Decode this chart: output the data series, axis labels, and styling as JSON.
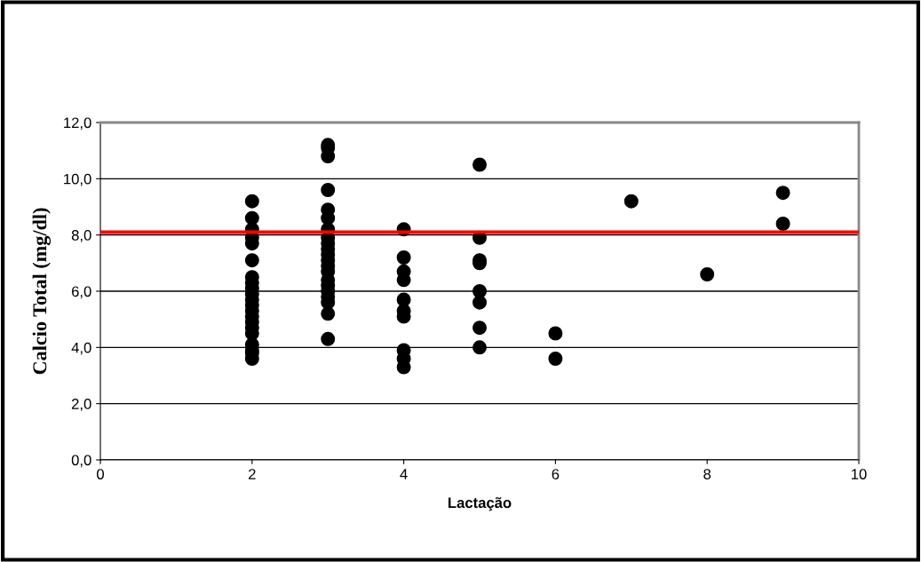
{
  "chart_data": {
    "type": "scatter",
    "xlabel": "Lactação",
    "ylabel": "Calcio Total (mg/dl)",
    "series": [
      {
        "color": "#000000",
        "x": [
          2,
          2,
          2,
          2,
          2,
          2,
          2,
          2,
          2,
          2,
          2,
          2,
          2,
          2,
          2,
          2,
          2,
          2,
          2,
          2,
          2,
          3,
          3,
          3,
          3,
          3,
          3,
          3,
          3,
          3,
          3,
          3,
          3,
          3,
          3,
          3,
          3,
          3,
          3,
          3,
          3,
          3,
          4,
          4,
          4,
          4,
          4,
          4,
          4,
          4,
          4,
          4,
          5,
          5,
          5,
          5,
          5,
          5,
          5,
          5,
          6,
          6,
          7,
          8,
          9,
          9
        ],
        "values": [
          9.2,
          8.6,
          8.2,
          7.9,
          7.7,
          7.1,
          6.5,
          6.3,
          6.1,
          5.9,
          5.7,
          5.5,
          5.3,
          5.1,
          4.9,
          4.7,
          4.5,
          4.1,
          3.9,
          3.8,
          3.6,
          11.2,
          11.1,
          10.8,
          9.6,
          8.9,
          8.6,
          8.2,
          7.9,
          7.7,
          7.5,
          7.3,
          7.1,
          6.9,
          6.7,
          6.4,
          6.2,
          6.0,
          5.8,
          5.6,
          5.2,
          4.3,
          8.2,
          7.2,
          6.7,
          6.4,
          5.7,
          5.3,
          5.1,
          3.9,
          3.6,
          3.3,
          10.5,
          7.9,
          7.1,
          7.0,
          6.0,
          5.6,
          4.7,
          4.0,
          4.5,
          3.6,
          9.2,
          6.6,
          9.5,
          8.4
        ]
      }
    ],
    "xlim": [
      0,
      10
    ],
    "xticks": [
      0,
      2,
      4,
      6,
      8,
      10
    ],
    "ylim": [
      0,
      12
    ],
    "yticks": [
      {
        "value": 0,
        "label": "0,0"
      },
      {
        "value": 2,
        "label": "2,0"
      },
      {
        "value": 4,
        "label": "4,0"
      },
      {
        "value": 6,
        "label": "6,0"
      },
      {
        "value": 8,
        "label": "8,0"
      },
      {
        "value": 10,
        "label": "10,0"
      },
      {
        "value": 12,
        "label": "12,0"
      }
    ],
    "grid": "y",
    "marker": "circle",
    "ref_lines": [
      {
        "axis": "y",
        "value": 8.1,
        "color": "#ff0000",
        "line_style": "solid"
      }
    ]
  }
}
